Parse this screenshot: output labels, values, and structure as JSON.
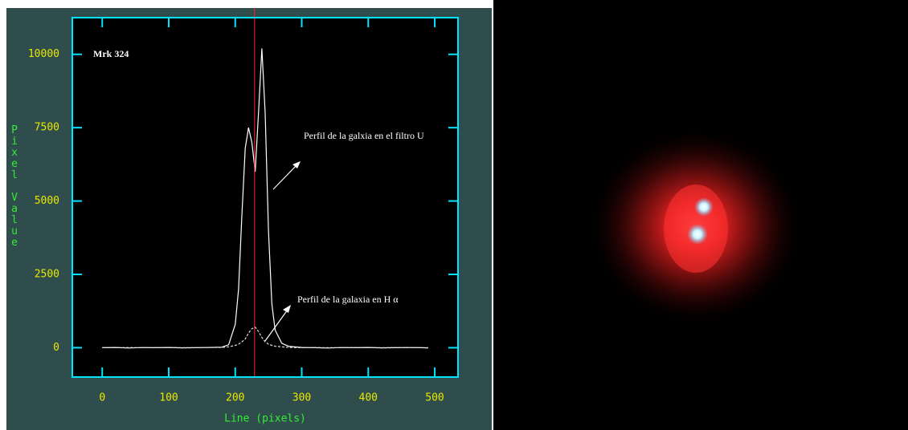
{
  "chart_data": {
    "type": "line",
    "x_label": "Line (pixels)",
    "y_label": "Pixel Value",
    "annotations": [
      "Mrk 324",
      "Perfil de la galxia en el filtro U",
      "Perfil de la galaxia en H α"
    ],
    "x": [
      0,
      20,
      40,
      60,
      80,
      100,
      120,
      140,
      160,
      180,
      190,
      200,
      205,
      210,
      215,
      220,
      225,
      230,
      235,
      240,
      245,
      250,
      255,
      260,
      270,
      280,
      300,
      320,
      340,
      360,
      380,
      400,
      420,
      440,
      460,
      480,
      490
    ],
    "series": [
      {
        "color": "#ffffff",
        "values": [
          0,
          10,
          -10,
          5,
          0,
          10,
          -5,
          0,
          10,
          20,
          100,
          800,
          2000,
          4500,
          6800,
          7500,
          7000,
          6000,
          8000,
          10200,
          8000,
          4000,
          1500,
          600,
          150,
          50,
          10,
          0,
          -10,
          5,
          0,
          10,
          -5,
          0,
          5,
          0,
          -10
        ]
      },
      {
        "color": "#dddddd",
        "dashed": true,
        "values": [
          0,
          0,
          5,
          0,
          0,
          5,
          0,
          0,
          5,
          10,
          30,
          80,
          120,
          200,
          300,
          500,
          650,
          700,
          550,
          350,
          200,
          120,
          80,
          50,
          30,
          10,
          0,
          5,
          0,
          0,
          5,
          0,
          0,
          5,
          0,
          0,
          0
        ]
      }
    ],
    "marker_x": 229,
    "marker_color": "#ff2020",
    "axis_color": "#00e5ff",
    "tick_color": "#e8e800",
    "label_color": "#33ee33",
    "xlim": [
      -45,
      535
    ],
    "ylim": [
      -1000,
      11250
    ],
    "xticks": [
      0,
      100,
      200,
      300,
      400,
      500
    ],
    "yticks": [
      0,
      2500,
      5000,
      7500,
      10000
    ]
  }
}
